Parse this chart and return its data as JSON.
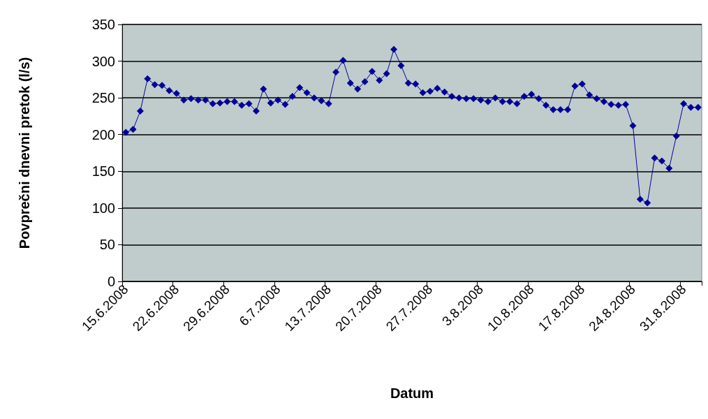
{
  "chart_data": {
    "type": "line",
    "xlabel": "Datum",
    "ylabel": "Povprečni dnevni pretok (l/s)",
    "categories": [
      "15.6.2008",
      null,
      null,
      null,
      null,
      null,
      null,
      "22.6.2008",
      null,
      null,
      null,
      null,
      null,
      null,
      "29.6.2008",
      null,
      null,
      null,
      null,
      null,
      null,
      "6.7.2008",
      null,
      null,
      null,
      null,
      null,
      null,
      "13.7.2008",
      null,
      null,
      null,
      null,
      null,
      null,
      "20.7.2008",
      null,
      null,
      null,
      null,
      null,
      null,
      "27.7.2008",
      null,
      null,
      null,
      null,
      null,
      null,
      "3.8.2008",
      null,
      null,
      null,
      null,
      null,
      null,
      "10.8.2008",
      null,
      null,
      null,
      null,
      null,
      null,
      "17.8.2008",
      null,
      null,
      null,
      null,
      null,
      null,
      "24.8.2008",
      null,
      null,
      null,
      null,
      null,
      null,
      "31.8.2008",
      null,
      null
    ],
    "series": [
      {
        "color": "#000099",
        "values": [
          203,
          207,
          232,
          276,
          268,
          267,
          260,
          256,
          247,
          249,
          247,
          247,
          242,
          243,
          245,
          245,
          240,
          242,
          232,
          262,
          243,
          247,
          241,
          252,
          264,
          257,
          250,
          246,
          242,
          285,
          301,
          270,
          262,
          272,
          286,
          274,
          283,
          316,
          294,
          270,
          269,
          257,
          259,
          263,
          258,
          252,
          250,
          249,
          249,
          247,
          245,
          250,
          245,
          245,
          242,
          252,
          255,
          249,
          240,
          234,
          234,
          234,
          266,
          269,
          254,
          249,
          245,
          241,
          240,
          241,
          212,
          112,
          107,
          168,
          164,
          154,
          198,
          242,
          237,
          237
        ]
      }
    ],
    "ylim": [
      0,
      350
    ],
    "yticks": [
      0,
      50,
      100,
      150,
      200,
      250,
      300,
      350
    ],
    "grid": "y",
    "marker": "diamond",
    "line_style": "solid"
  }
}
